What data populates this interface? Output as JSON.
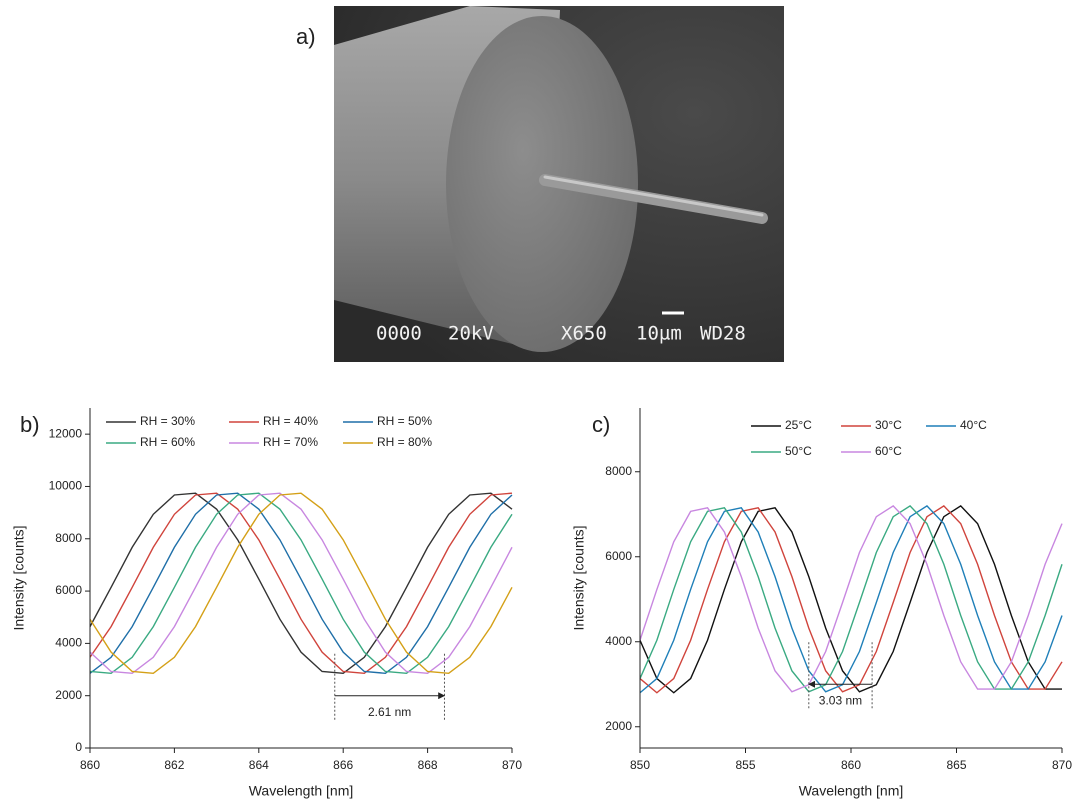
{
  "figure": {
    "panel_a": {
      "label": "a)",
      "sem_info": [
        "0000",
        "20kV",
        "X650",
        "10µm",
        "WD28"
      ]
    }
  },
  "chart_data": [
    {
      "type": "line",
      "panel_label": "b)",
      "x_label": "Wavelength [nm]",
      "y_label": "Intensity [counts]",
      "xlim": [
        860,
        870
      ],
      "ylim": [
        0,
        13000
      ],
      "xticks": [
        860,
        862,
        864,
        866,
        868,
        870
      ],
      "yticks": [
        0,
        2000,
        4000,
        6000,
        8000,
        10000,
        12000
      ],
      "legend_columns": 3,
      "x": [
        860,
        860.5,
        861,
        861.5,
        862,
        862.5,
        863,
        863.5,
        864,
        864.5,
        865,
        865.5,
        866,
        866.5,
        867,
        867.5,
        868,
        868.5,
        869,
        869.5,
        870
      ],
      "series": [
        {
          "name": "RH = 30%",
          "color": "#333333",
          "values": [
            4641,
            6143,
            7676,
            8936,
            9674,
            9744,
            9132,
            7959,
            6458,
            4925,
            3665,
            2926,
            2856,
            3469,
            4641,
            6143,
            7676,
            8936,
            9674,
            9744,
            9132
          ]
        },
        {
          "name": "RH = 40%",
          "color": "#d0443c",
          "values": [
            3469,
            4641,
            6143,
            7676,
            8936,
            9674,
            9744,
            9132,
            7959,
            6458,
            4925,
            3665,
            2926,
            2856,
            3469,
            4641,
            6143,
            7676,
            8936,
            9674,
            9744
          ]
        },
        {
          "name": "RH = 50%",
          "color": "#1f6fa8",
          "values": [
            2856,
            3469,
            4641,
            6143,
            7676,
            8936,
            9674,
            9744,
            9132,
            7959,
            6458,
            4925,
            3665,
            2926,
            2856,
            3469,
            4641,
            6143,
            7676,
            8936,
            9674
          ]
        },
        {
          "name": "RH = 60%",
          "color": "#3aaa82",
          "values": [
            2926,
            2856,
            3469,
            4641,
            6143,
            7676,
            8936,
            9674,
            9744,
            9132,
            7959,
            6458,
            4925,
            3665,
            2926,
            2856,
            3469,
            4641,
            6143,
            7676,
            8936
          ]
        },
        {
          "name": "RH = 70%",
          "color": "#c887e0",
          "values": [
            3665,
            2926,
            2856,
            3469,
            4641,
            6143,
            7676,
            8936,
            9674,
            9744,
            9132,
            7959,
            6458,
            4925,
            3665,
            2926,
            2856,
            3469,
            4641,
            6143,
            7676
          ]
        },
        {
          "name": "RH = 80%",
          "color": "#d4a017",
          "values": [
            4925,
            3665,
            2926,
            2856,
            3469,
            4641,
            6143,
            7676,
            8936,
            9674,
            9744,
            9132,
            7959,
            6458,
            4925,
            3665,
            2926,
            2856,
            3469,
            4641,
            6143
          ]
        }
      ],
      "annotation": {
        "text": "2.61 nm",
        "x": [
          865.8,
          868.4
        ],
        "y": 2000
      }
    },
    {
      "type": "line",
      "panel_label": "c)",
      "x_label": "Wavelength [nm]",
      "y_label": "Intensity [counts]",
      "xlim": [
        850,
        870
      ],
      "ylim": [
        1500,
        9500
      ],
      "xticks": [
        850,
        855,
        860,
        865,
        870
      ],
      "yticks": [
        2000,
        4000,
        6000,
        8000
      ],
      "legend_columns": 3,
      "x": [
        850,
        850.8,
        851.6,
        852.4,
        853.2,
        854,
        854.8,
        855.6,
        856.4,
        857.2,
        858,
        858.8,
        859.6,
        860.4,
        861.2,
        862,
        862.8,
        863.6,
        864.4,
        865.2,
        866,
        866.8,
        867.6,
        868.4,
        869.2,
        870
      ],
      "series": [
        {
          "name": "25°C",
          "color": "#111111",
          "values": [
            4036,
            3134,
            2800,
            3134,
            4036,
            5231,
            6353,
            7068,
            7152,
            6582,
            5532,
            4320,
            3315,
            2822,
            2989,
            3770,
            4923,
            6100,
            6943,
            7196,
            6780,
            5823,
            4617,
            3528,
            2886,
            2886
          ]
        },
        {
          "name": "30°C",
          "color": "#d0443c",
          "values": [
            3134,
            2800,
            3134,
            4036,
            5231,
            6353,
            7068,
            7152,
            6582,
            5532,
            4320,
            3315,
            2822,
            2989,
            3770,
            4923,
            6100,
            6943,
            7196,
            6780,
            5823,
            4617,
            3528,
            2886,
            2886,
            3528
          ]
        },
        {
          "name": "40°C",
          "color": "#1f7fb8",
          "values": [
            2800,
            3134,
            4036,
            5231,
            6353,
            7068,
            7152,
            6582,
            5532,
            4320,
            3315,
            2822,
            2989,
            3770,
            4923,
            6100,
            6943,
            7196,
            6780,
            5823,
            4617,
            3528,
            2886,
            2886,
            3528,
            4617
          ]
        },
        {
          "name": "50°C",
          "color": "#3aaa82",
          "values": [
            3134,
            4036,
            5231,
            6353,
            7068,
            7152,
            6582,
            5532,
            4320,
            3315,
            2822,
            2989,
            3770,
            4923,
            6100,
            6943,
            7196,
            6780,
            5823,
            4617,
            3528,
            2886,
            2886,
            3528,
            4617,
            5823
          ]
        },
        {
          "name": "60°C",
          "color": "#c887e0",
          "values": [
            4036,
            5231,
            6353,
            7068,
            7152,
            6582,
            5532,
            4320,
            3315,
            2822,
            2989,
            3770,
            4923,
            6100,
            6943,
            7196,
            6780,
            5823,
            4617,
            3528,
            2886,
            2886,
            3528,
            4617,
            5823,
            6780
          ]
        }
      ],
      "annotation": {
        "text": "3.03 nm",
        "x": [
          861,
          858
        ],
        "y": 3000
      }
    }
  ]
}
